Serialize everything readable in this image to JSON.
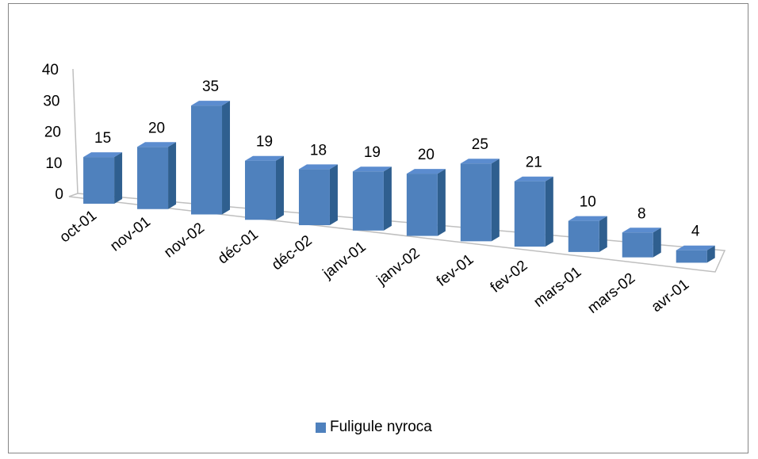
{
  "chart_data": {
    "type": "bar",
    "style": "3d-perspective",
    "categories": [
      "oct-01",
      "nov-01",
      "nov-02",
      "déc-01",
      "déc-02",
      "janv-01",
      "janv-02",
      "fev-01",
      "fev-02",
      "mars-01",
      "mars-02",
      "avr-01"
    ],
    "series": [
      {
        "name": "Fuligule nyroca",
        "values": [
          15,
          20,
          35,
          19,
          18,
          19,
          20,
          25,
          21,
          10,
          8,
          4
        ],
        "color": "#4f81bd"
      }
    ],
    "data_labels": [
      "15",
      "20",
      "35",
      "19",
      "18",
      "19",
      "20",
      "25",
      "21",
      "10",
      "8",
      "4"
    ],
    "ylim": [
      0,
      40
    ],
    "yticks": [
      "0",
      "10",
      "20",
      "30",
      "40"
    ],
    "grid": false,
    "legend_position": "bottom"
  }
}
